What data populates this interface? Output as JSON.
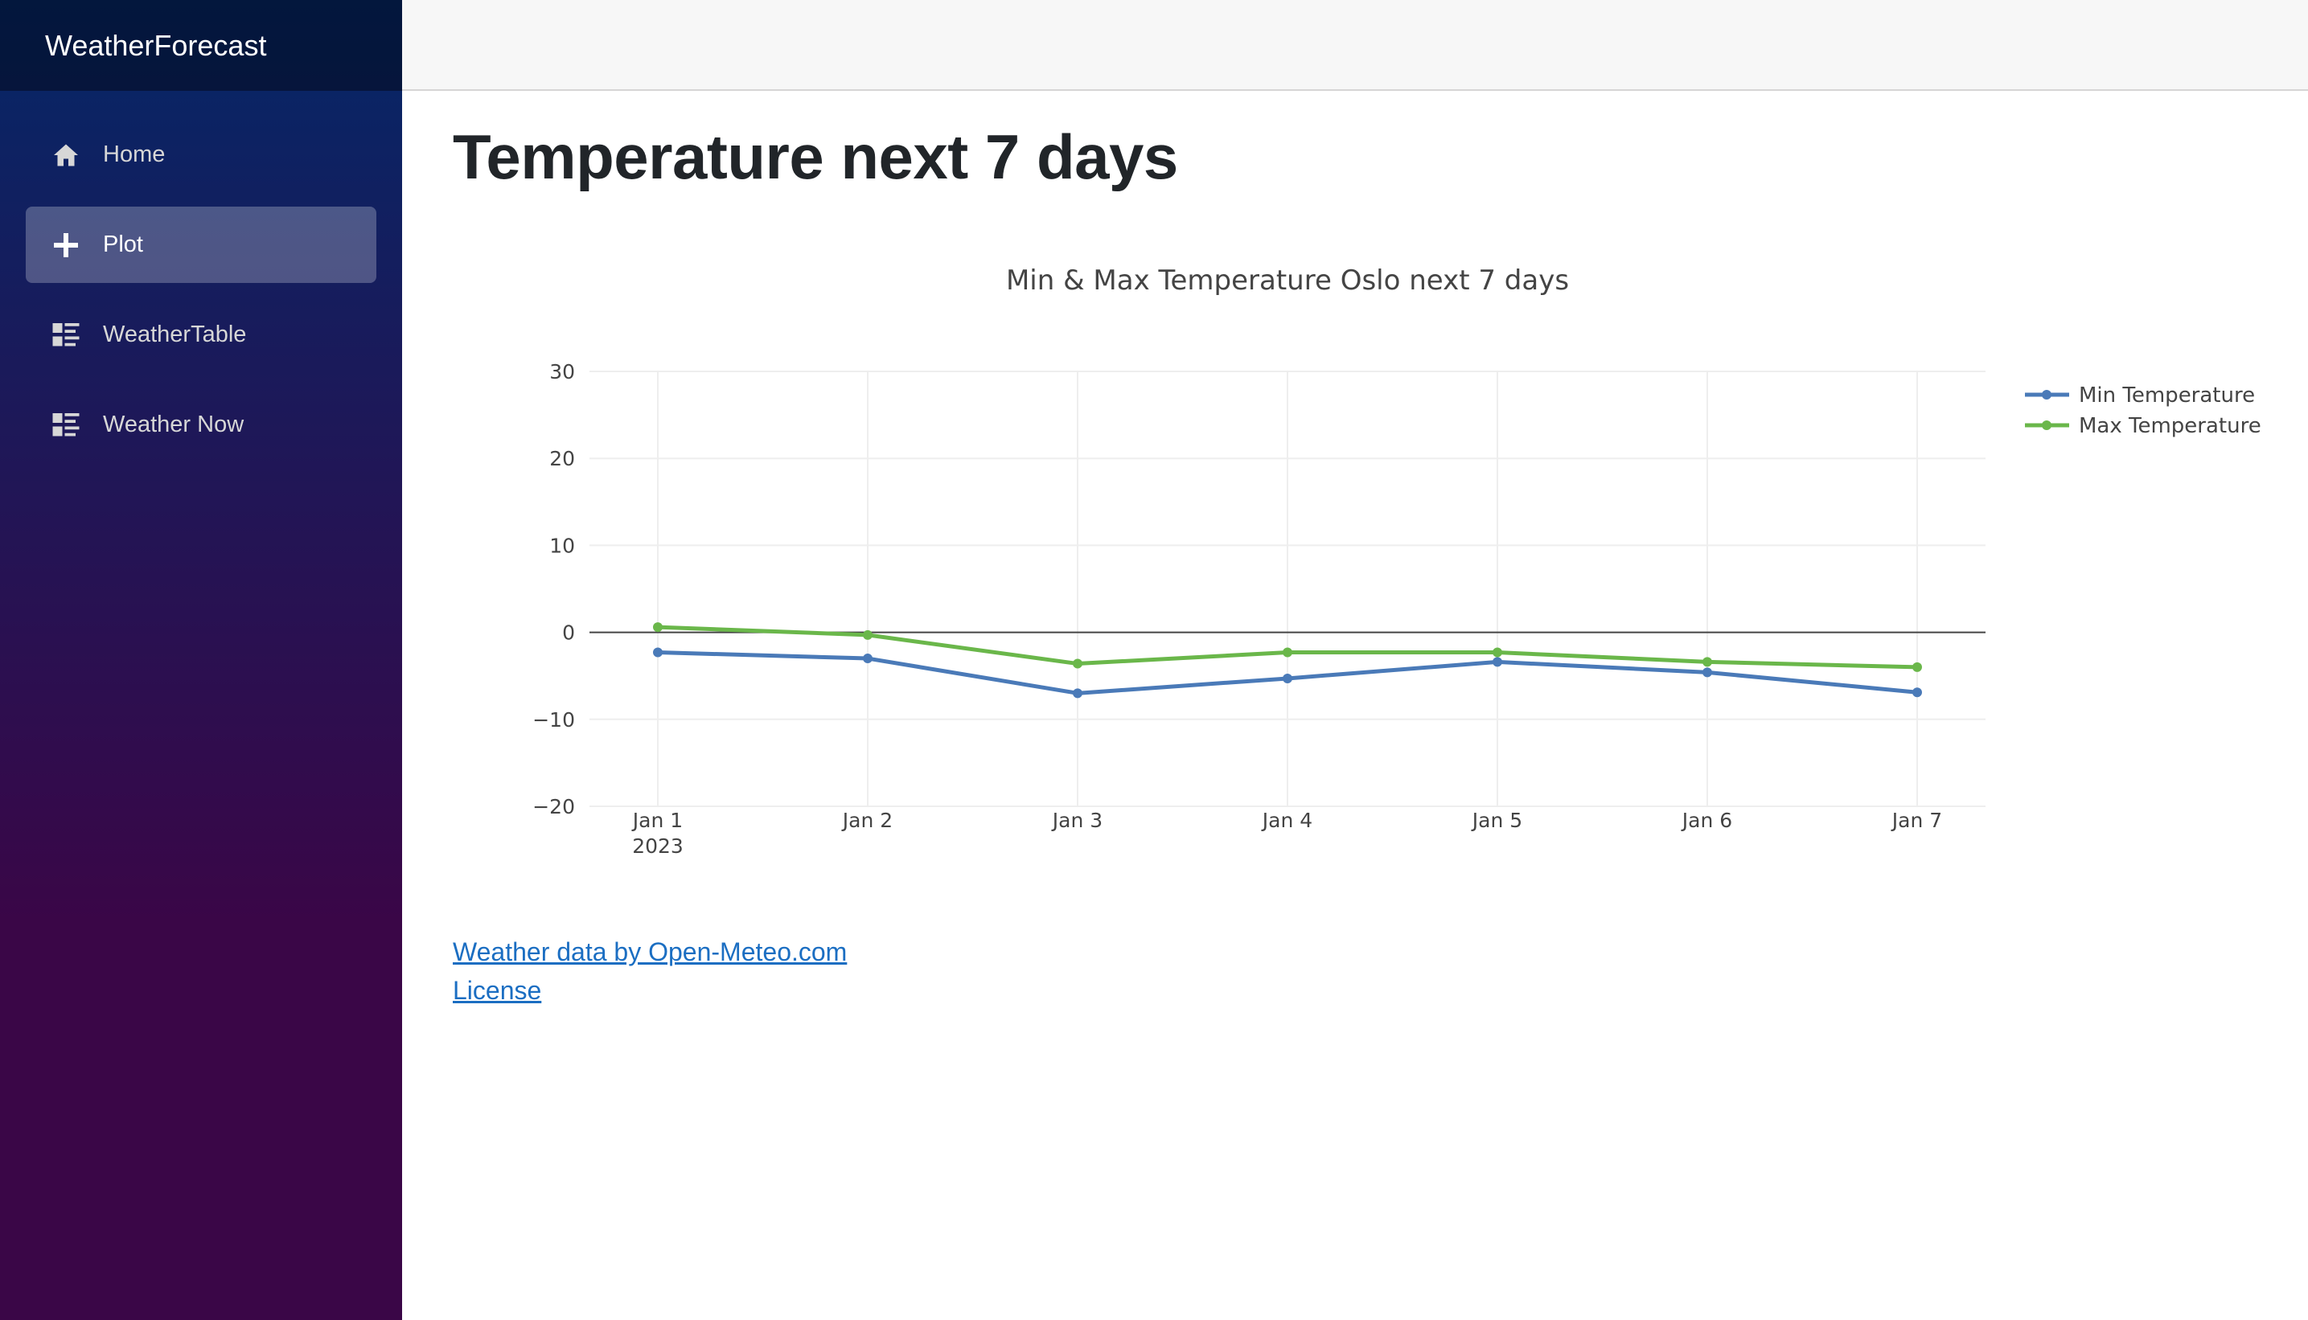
{
  "app": {
    "brand": "WeatherForecast"
  },
  "sidebar": {
    "items": [
      {
        "label": "Home",
        "icon": "home-icon",
        "active": false
      },
      {
        "label": "Plot",
        "icon": "plus-icon",
        "active": true
      },
      {
        "label": "WeatherTable",
        "icon": "list-icon",
        "active": false
      },
      {
        "label": "Weather Now",
        "icon": "list-icon",
        "active": false
      }
    ]
  },
  "main": {
    "title": "Temperature next 7 days",
    "links": {
      "data_source": "Weather data by Open-Meteo.com",
      "license": "License"
    }
  },
  "colors": {
    "min_series": "#4a7ab8",
    "max_series": "#6ab74a",
    "link": "#1b6ec2"
  },
  "chart_data": {
    "type": "line",
    "title": "Min & Max Temperature Oslo next 7 days",
    "xlabel": "",
    "ylabel": "",
    "categories": [
      "Jan 1",
      "Jan 2",
      "Jan 3",
      "Jan 4",
      "Jan 5",
      "Jan 6",
      "Jan 7"
    ],
    "x_year_label": "2023",
    "ylim": [
      -20,
      30
    ],
    "yticks": [
      "30",
      "20",
      "10",
      "0",
      "−10",
      "−20"
    ],
    "grid": true,
    "legend": "top-right",
    "series": [
      {
        "name": "Min Temperature",
        "values": [
          -2.3,
          -3.0,
          -7.0,
          -5.3,
          -3.4,
          -4.6,
          -6.9
        ],
        "color": "#4a7ab8"
      },
      {
        "name": "Max Temperature",
        "values": [
          0.6,
          -0.3,
          -3.6,
          -2.3,
          -2.3,
          -3.4,
          -4.0
        ],
        "color": "#6ab74a"
      }
    ]
  }
}
